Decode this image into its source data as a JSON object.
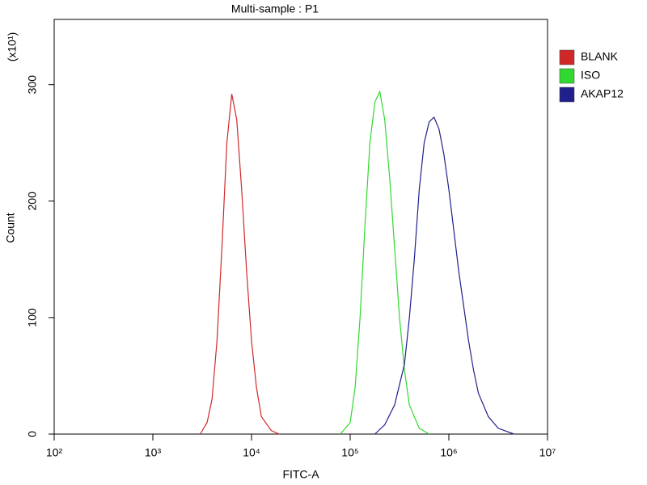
{
  "chart_data": {
    "type": "line",
    "title": "Multi-sample : P1",
    "x_label": "FITC-A",
    "y_label": "Count",
    "y_multiplier": "(x10¹)",
    "x_scale": "log",
    "xlim": [
      100,
      10000000
    ],
    "xticks": [
      {
        "value": 100,
        "label": "10²"
      },
      {
        "value": 1000,
        "label": "10³"
      },
      {
        "value": 10000,
        "label": "10⁴"
      },
      {
        "value": 100000,
        "label": "10⁵"
      },
      {
        "value": 1000000,
        "label": "10⁶"
      },
      {
        "value": 10000000,
        "label": "10⁷"
      }
    ],
    "ylim": [
      0,
      356
    ],
    "yticks": [
      0,
      100,
      200,
      300
    ],
    "grid": false,
    "legend": "right",
    "series": [
      {
        "name": "BLANK",
        "color": "#d02828",
        "x": [
          3020,
          3550,
          3980,
          4470,
          5010,
          5620,
          6310,
          7080,
          7940,
          8910,
          10000,
          11220,
          12590,
          15850,
          19050
        ],
        "values": [
          0,
          10,
          30,
          80,
          160,
          250,
          292,
          270,
          210,
          140,
          80,
          40,
          15,
          3,
          0
        ]
      },
      {
        "name": "ISO",
        "color": "#30d830",
        "x": [
          79430,
          100000,
          112200,
          125900,
          141300,
          158500,
          177800,
          199500,
          223900,
          251200,
          281800,
          316200,
          354800,
          398100,
          501200,
          631000
        ],
        "values": [
          0,
          10,
          40,
          100,
          180,
          250,
          285,
          294,
          270,
          220,
          160,
          100,
          55,
          25,
          5,
          0
        ]
      },
      {
        "name": "AKAP12",
        "color": "#20208c",
        "x": [
          177800,
          223900,
          281800,
          354800,
          398100,
          446700,
          501200,
          562300,
          631000,
          707900,
          794300,
          891300,
          1000000,
          1122000,
          1259000,
          1413000,
          1585000,
          1778000,
          1995000,
          2512000,
          3162000,
          4571000
        ],
        "values": [
          0,
          8,
          25,
          60,
          100,
          150,
          210,
          250,
          268,
          272,
          262,
          240,
          210,
          175,
          140,
          110,
          80,
          55,
          35,
          15,
          5,
          0
        ]
      }
    ]
  }
}
